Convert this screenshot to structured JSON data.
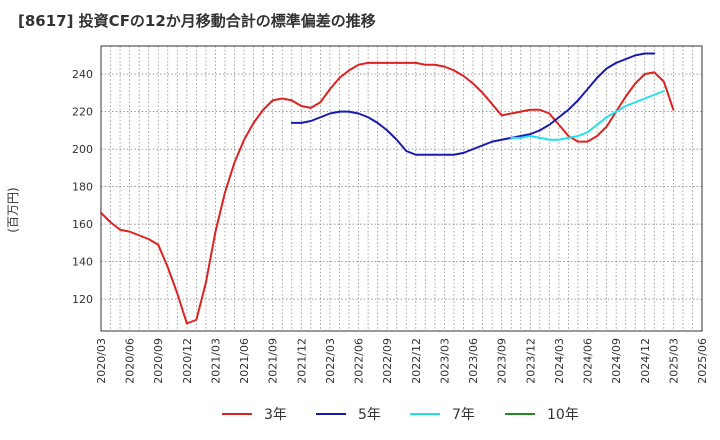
{
  "chart_data": {
    "type": "line",
    "title": "[8617]  投資CFの12か月移動合計の標準偏差の推移",
    "ylabel": "(百万円)",
    "xlabel": "",
    "ylim": [
      103,
      255
    ],
    "y_ticks": [
      120,
      140,
      160,
      180,
      200,
      220,
      240
    ],
    "x_tick_labels": [
      "2020/03",
      "2020/06",
      "2020/09",
      "2020/12",
      "2021/03",
      "2021/06",
      "2021/09",
      "2021/12",
      "2022/03",
      "2022/06",
      "2022/09",
      "2022/12",
      "2023/03",
      "2023/06",
      "2023/09",
      "2023/12",
      "2024/03",
      "2024/06",
      "2024/09",
      "2024/12",
      "2025/03",
      "2025/06"
    ],
    "x_start": "2020/03",
    "x_end": "2025/06",
    "grid": true,
    "legend_position": "bottom",
    "series": [
      {
        "name": "3年",
        "color": "#dd2222",
        "start": "2020/03",
        "values": [
          166,
          161,
          157,
          156,
          154,
          152,
          149,
          137,
          123,
          107,
          109,
          129,
          156,
          177,
          193,
          205,
          214,
          221,
          226,
          227,
          226,
          223,
          222,
          225,
          232,
          238,
          242,
          245,
          246,
          246,
          246,
          246,
          246,
          246,
          245,
          245,
          244,
          242,
          239,
          235,
          230,
          224,
          218,
          219,
          220,
          221,
          221,
          219,
          213,
          207,
          204,
          204,
          207,
          212,
          220,
          228,
          235,
          240,
          241,
          236,
          221
        ]
      },
      {
        "name": "5年",
        "color": "#1a1ab0",
        "start": "2021/11",
        "values": [
          214,
          214,
          215,
          217,
          219,
          220,
          220,
          219,
          217,
          214,
          210,
          205,
          199,
          197,
          197,
          197,
          197,
          197,
          198,
          200,
          202,
          204,
          205,
          206,
          207,
          208,
          210,
          213,
          217,
          221,
          226,
          232,
          238,
          243,
          246,
          248,
          250,
          251,
          251
        ]
      },
      {
        "name": "7年",
        "color": "#22e0e8",
        "start": "2023/10",
        "values": [
          206,
          206,
          207,
          206,
          205,
          205,
          206,
          207,
          209,
          213,
          217,
          220,
          223,
          225,
          227,
          229,
          231
        ]
      },
      {
        "name": "10年",
        "color": "#228b22",
        "start": "2025/03",
        "values": []
      }
    ]
  }
}
